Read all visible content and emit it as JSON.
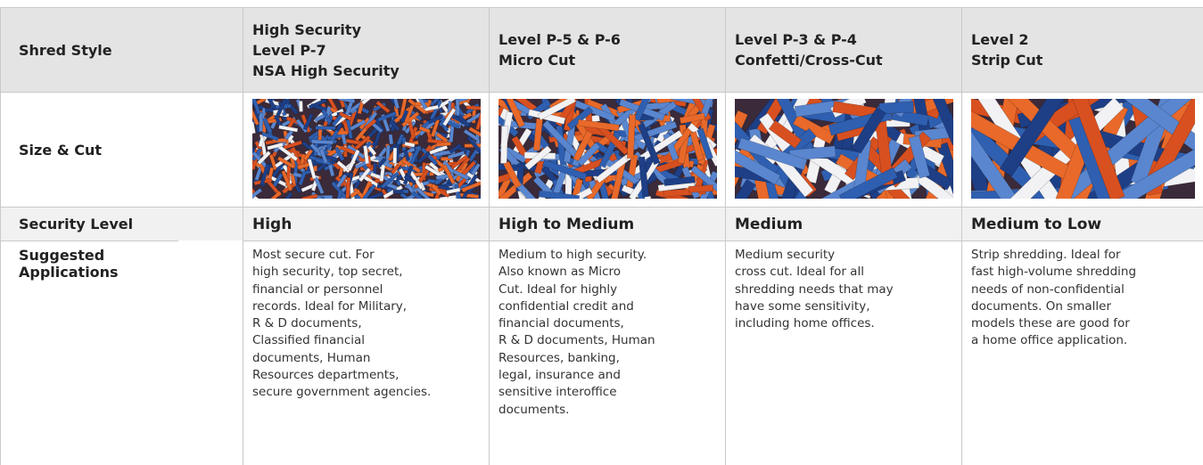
{
  "table": {
    "header": {
      "label": "Shred Style",
      "columns": [
        [
          "High Security",
          "Level P-7",
          "NSA High Security"
        ],
        [
          "Level P-5 & P-6",
          "Micro Cut"
        ],
        [
          "Level P-3 & P-4",
          "Confetti/Cross-Cut"
        ],
        [
          "Level 2",
          "Strip Cut"
        ]
      ]
    },
    "rows": [
      {
        "label": "Size & Cut"
      },
      {
        "label": "Security Level",
        "cells": [
          "High",
          "High to Medium",
          "Medium",
          "Medium to Low"
        ]
      },
      {
        "label": "Suggested Applications",
        "cells": [
          [
            "Most secure cut. For",
            "high security, top secret,",
            "financial or personnel",
            "records. Ideal for Military,",
            "R & D documents,",
            "Classified financial",
            "documents, Human",
            "Resources departments,",
            "secure government agencies."
          ],
          [
            "Medium to high security.",
            "Also known as Micro",
            "Cut. Ideal for highly",
            "confidential credit and",
            "financial documents,",
            "R & D documents, Human",
            "Resources, banking,",
            "legal, insurance and",
            "sensitive interoffice",
            "documents."
          ],
          [
            "Medium security",
            "cross cut. Ideal for all",
            "shredding needs that may",
            "have some sensitivity,",
            "including home offices."
          ],
          [
            "Strip shredding. Ideal for",
            "fast high-volume shredding",
            "needs of non-confidential",
            "documents. On smaller",
            "models these are good for",
            "a home office application."
          ]
        ]
      }
    ]
  }
}
